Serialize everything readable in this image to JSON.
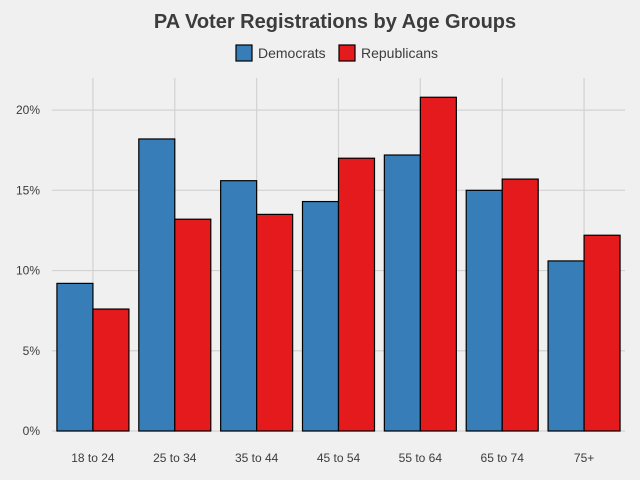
{
  "chart_data": {
    "type": "bar",
    "title": "PA Voter Registrations by Age Groups",
    "xlabel": "",
    "ylabel": "",
    "categories": [
      "18 to 24",
      "25 to 34",
      "35 to 44",
      "45 to 54",
      "55 to 64",
      "65 to 74",
      "75+"
    ],
    "series": [
      {
        "name": "Democrats",
        "color": "#377eb8",
        "values": [
          9.2,
          18.2,
          15.6,
          14.3,
          17.2,
          15.0,
          10.6
        ]
      },
      {
        "name": "Republicans",
        "color": "#e41a1c",
        "values": [
          7.6,
          13.2,
          13.5,
          17.0,
          20.8,
          15.7,
          12.2
        ]
      }
    ],
    "ylim": [
      0,
      22
    ],
    "yticks": [
      0,
      5,
      10,
      15,
      20
    ],
    "ytick_labels": [
      "0%",
      "5%",
      "10%",
      "15%",
      "20%"
    ],
    "grid": true,
    "legend_position": "top"
  }
}
